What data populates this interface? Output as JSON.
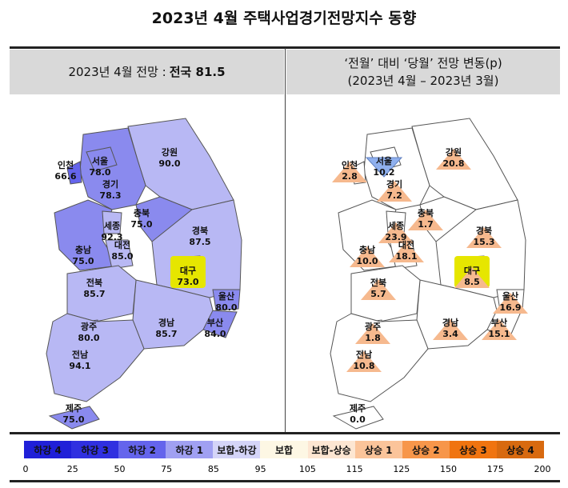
{
  "title": "2023년 4월 주택사업경기전망지수 동향",
  "left_header": {
    "prefix": "2023년 4월 전망 : ",
    "bold": "전국 81.5"
  },
  "right_header": {
    "line1": "‘전월’ 대비 ‘당월’ 전망 변동(p)",
    "line2": "(2023년 4월 – 2023년 3월)"
  },
  "regions": [
    {
      "name": "강원",
      "outlook": "90.0",
      "change": "20.8",
      "dir": "up"
    },
    {
      "name": "경기",
      "outlook": "78.3",
      "change": "7.2",
      "dir": "up"
    },
    {
      "name": "서울",
      "outlook": "78.0",
      "change": "10.2",
      "dir": "down"
    },
    {
      "name": "인천",
      "outlook": "66.6",
      "change": "2.8",
      "dir": "up"
    },
    {
      "name": "충북",
      "outlook": "75.0",
      "change": "1.7",
      "dir": "up"
    },
    {
      "name": "충남",
      "outlook": "75.0",
      "change": "10.0",
      "dir": "up"
    },
    {
      "name": "세종",
      "outlook": "92.3",
      "change": "23.9",
      "dir": "up"
    },
    {
      "name": "대전",
      "outlook": "85.0",
      "change": "18.1",
      "dir": "up"
    },
    {
      "name": "경북",
      "outlook": "87.5",
      "change": "15.3",
      "dir": "up"
    },
    {
      "name": "대구",
      "outlook": "73.0",
      "change": "8.5",
      "dir": "up"
    },
    {
      "name": "울산",
      "outlook": "80.0",
      "change": "16.9",
      "dir": "up"
    },
    {
      "name": "부산",
      "outlook": "84.0",
      "change": "15.1",
      "dir": "up"
    },
    {
      "name": "경남",
      "outlook": "85.7",
      "change": "3.4",
      "dir": "up"
    },
    {
      "name": "전북",
      "outlook": "85.7",
      "change": "5.7",
      "dir": "up"
    },
    {
      "name": "광주",
      "outlook": "80.0",
      "change": "1.8",
      "dir": "up"
    },
    {
      "name": "전남",
      "outlook": "94.1",
      "change": "10.8",
      "dir": "up"
    },
    {
      "name": "제주",
      "outlook": "75.0",
      "change": "0.0",
      "dir": "flat"
    }
  ],
  "highlight_region": "대구",
  "legend": {
    "items": [
      {
        "label": "하강 4",
        "color": "#2020d8"
      },
      {
        "label": "하강 3",
        "color": "#3030e0"
      },
      {
        "label": "하강 2",
        "color": "#6464ec"
      },
      {
        "label": "하강 1",
        "color": "#a0a0f2"
      },
      {
        "label": "보합-하강",
        "color": "#d4d4f8"
      },
      {
        "label": "보합",
        "color": "#fdf7e4"
      },
      {
        "label": "보합-상승",
        "color": "#fde6d2"
      },
      {
        "label": "상승 1",
        "color": "#fbc49a"
      },
      {
        "label": "상승 2",
        "color": "#f7964a"
      },
      {
        "label": "상승 3",
        "color": "#f07410"
      },
      {
        "label": "상승 4",
        "color": "#d86a10"
      }
    ],
    "ticks": [
      "0",
      "25",
      "50",
      "75",
      "85",
      "95",
      "105",
      "115",
      "125",
      "150",
      "175",
      "200"
    ]
  },
  "colors": {
    "up": "#f6b98e",
    "down": "#8fb0ee",
    "highlight": "#e6e600",
    "border": "#555555"
  }
}
